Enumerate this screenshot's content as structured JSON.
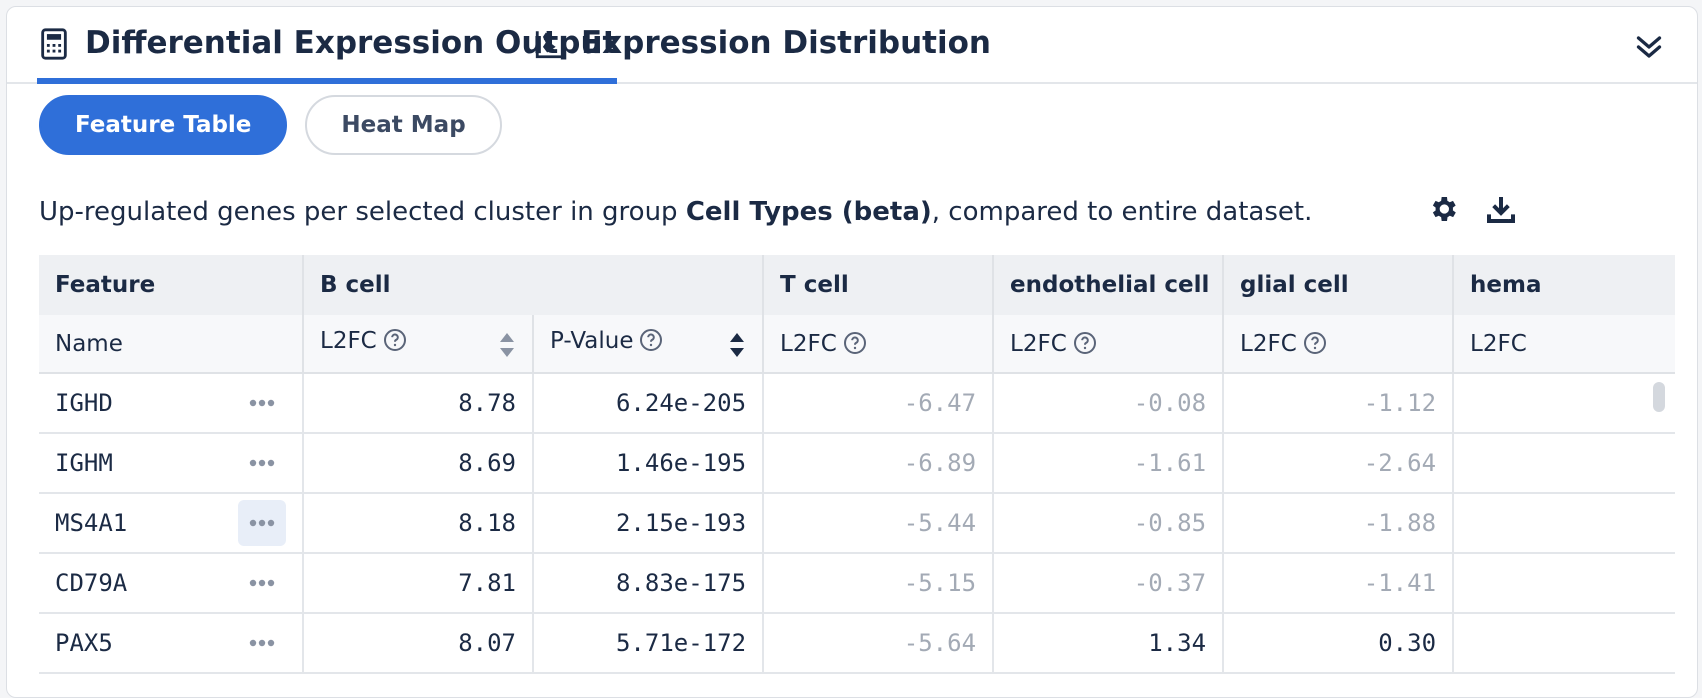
{
  "tabs": [
    {
      "label": "Differential Expression Output",
      "icon": "calculator-icon",
      "active": true
    },
    {
      "label": "Expression Distribution",
      "icon": "distribution-chart-icon",
      "active": false
    }
  ],
  "view_toggle": {
    "feature_table": "Feature Table",
    "heat_map": "Heat Map"
  },
  "description": {
    "prefix": "Up-regulated genes per selected cluster in group ",
    "group": "Cell Types (beta)",
    "suffix": ", compared to entire dataset."
  },
  "table": {
    "group_headers": [
      "Feature",
      "B cell",
      "T cell",
      "endothelial cell",
      "glial cell",
      "hema"
    ],
    "sub_headers": {
      "name": "Name",
      "b_l2fc": "L2FC",
      "b_pvalue": "P-Value",
      "t_l2fc": "L2FC",
      "endo_l2fc": "L2FC",
      "glial_l2fc": "L2FC",
      "hema_l2fc": "L2FC"
    },
    "rows": [
      {
        "name": "IGHD",
        "b_l2fc": "8.78",
        "b_pvalue": "6.24e-205",
        "t_l2fc": "-6.47",
        "endo_l2fc": "-0.08",
        "glial_l2fc": "-1.12"
      },
      {
        "name": "IGHM",
        "b_l2fc": "8.69",
        "b_pvalue": "1.46e-195",
        "t_l2fc": "-6.89",
        "endo_l2fc": "-1.61",
        "glial_l2fc": "-2.64"
      },
      {
        "name": "MS4A1",
        "b_l2fc": "8.18",
        "b_pvalue": "2.15e-193",
        "t_l2fc": "-5.44",
        "endo_l2fc": "-0.85",
        "glial_l2fc": "-1.88"
      },
      {
        "name": "CD79A",
        "b_l2fc": "7.81",
        "b_pvalue": "8.83e-175",
        "t_l2fc": "-5.15",
        "endo_l2fc": "-0.37",
        "glial_l2fc": "-1.41"
      },
      {
        "name": "PAX5",
        "b_l2fc": "8.07",
        "b_pvalue": "5.71e-172",
        "t_l2fc": "-5.64",
        "endo_l2fc": "1.34",
        "glial_l2fc": "0.30"
      }
    ]
  },
  "colors": {
    "accent": "#2f6fd9",
    "dim_value": "#a3aab5",
    "text": "#1b2a44"
  }
}
